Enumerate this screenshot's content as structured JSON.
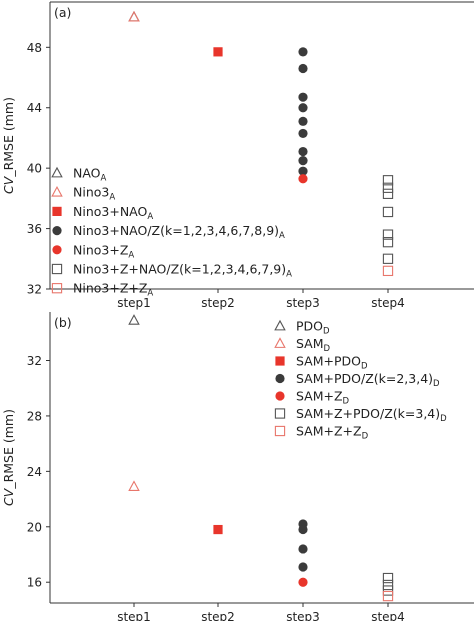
{
  "chart_data": [
    {
      "panel_label": "(a)",
      "type": "scatter",
      "ylabel": "CV_RMSE (mm)",
      "ylim": [
        32,
        51
      ],
      "yticks": [
        32,
        36,
        40,
        44,
        48
      ],
      "categories": [
        "step1",
        "step2",
        "step3",
        "step4"
      ],
      "legend_position": "lower-left",
      "series": [
        {
          "name": "NAO_A",
          "legend_base": "NAO",
          "legend_sub": "A",
          "marker": "triangle",
          "filled": false,
          "color": "#555555",
          "points": [
            {
              "x": "step1",
              "y": 50.0
            }
          ]
        },
        {
          "name": "Nino3_A",
          "legend_base": "Nino3",
          "legend_sub": "A",
          "marker": "triangle",
          "filled": false,
          "color": "#e8766b",
          "points": [
            {
              "x": "step1",
              "y": 50.0
            }
          ]
        },
        {
          "name": "Nino3_A+NAO_A",
          "legend_base": "Nino3+NAO",
          "legend_sub": "A",
          "marker": "square",
          "filled": true,
          "color": "#e8352b",
          "points": [
            {
              "x": "step2",
              "y": 47.7
            }
          ]
        },
        {
          "name": "Nino3_A+NAO_A/Z_kA(k=1,2,3,4,6,7,8,9)",
          "legend_base": "Nino3+NAO/Z(k=1,2,3,4,6,7,8,9)",
          "legend_sub": "A",
          "marker": "circle",
          "filled": true,
          "color": "#3b3b3b",
          "points": [
            {
              "x": "step3",
              "y": 47.7
            },
            {
              "x": "step3",
              "y": 46.6
            },
            {
              "x": "step3",
              "y": 44.7
            },
            {
              "x": "step3",
              "y": 44.0
            },
            {
              "x": "step3",
              "y": 43.1
            },
            {
              "x": "step3",
              "y": 42.3
            },
            {
              "x": "step3",
              "y": 41.1
            },
            {
              "x": "step3",
              "y": 40.5
            },
            {
              "x": "step3",
              "y": 39.8
            }
          ]
        },
        {
          "name": "Nino3_A+Z_5A",
          "legend_base": "Nino3+Z",
          "legend_sub": "A",
          "marker": "circle",
          "filled": true,
          "color": "#e8352b",
          "points": [
            {
              "x": "step3",
              "y": 39.3
            }
          ]
        },
        {
          "name": "Nino3_A+Z_5A+NAO_A/Z_kA(k=1,2,3,4,6,7,9)",
          "legend_base": "Nino3+Z+NAO/Z(k=1,2,3,4,6,7,9)",
          "legend_sub": "A",
          "marker": "square",
          "filled": false,
          "color": "#555555",
          "points": [
            {
              "x": "step4",
              "y": 39.2
            },
            {
              "x": "step4",
              "y": 38.7
            },
            {
              "x": "step4",
              "y": 38.3
            },
            {
              "x": "step4",
              "y": 37.1
            },
            {
              "x": "step4",
              "y": 35.6
            },
            {
              "x": "step4",
              "y": 35.1
            },
            {
              "x": "step4",
              "y": 34.0
            }
          ]
        },
        {
          "name": "Nino3_A+Z_5A+Z_8A",
          "legend_base": "Nino3+Z+Z",
          "legend_sub": "A",
          "marker": "square",
          "filled": false,
          "color": "#e8766b",
          "points": [
            {
              "x": "step4",
              "y": 33.2
            }
          ]
        }
      ]
    },
    {
      "panel_label": "(b)",
      "type": "scatter",
      "ylabel": "CV_RMSE (mm)",
      "ylim": [
        14.5,
        35.5
      ],
      "yticks": [
        16,
        20,
        24,
        28,
        32
      ],
      "categories": [
        "step1",
        "step2",
        "step3",
        "step4"
      ],
      "legend_position": "upper-right",
      "series": [
        {
          "name": "PDO_D",
          "legend_base": "PDO",
          "legend_sub": "D",
          "marker": "triangle",
          "filled": false,
          "color": "#555555",
          "points": [
            {
              "x": "step1",
              "y": 34.9
            }
          ]
        },
        {
          "name": "SAM_D",
          "legend_base": "SAM",
          "legend_sub": "D",
          "marker": "triangle",
          "filled": false,
          "color": "#e8766b",
          "points": [
            {
              "x": "step1",
              "y": 22.9
            }
          ]
        },
        {
          "name": "SAM_D+PDO_D",
          "legend_base": "SAM+PDO",
          "legend_sub": "D",
          "marker": "square",
          "filled": true,
          "color": "#e8352b",
          "points": [
            {
              "x": "step2",
              "y": 19.8
            }
          ]
        },
        {
          "name": "SAM_D+PDO_D/Z_kD(k=2,3,4)",
          "legend_base": "SAM+PDO/Z(k=2,3,4)",
          "legend_sub": "D",
          "marker": "circle",
          "filled": true,
          "color": "#3b3b3b",
          "points": [
            {
              "x": "step3",
              "y": 20.2
            },
            {
              "x": "step3",
              "y": 19.8
            },
            {
              "x": "step3",
              "y": 18.4
            },
            {
              "x": "step3",
              "y": 17.1
            }
          ]
        },
        {
          "name": "SAM_D+Z_1D",
          "legend_base": "SAM+Z",
          "legend_sub": "D",
          "marker": "circle",
          "filled": true,
          "color": "#e8352b",
          "points": [
            {
              "x": "step3",
              "y": 16.0
            }
          ]
        },
        {
          "name": "SAM_D+Z_1D+PDO_D/Z_kD(k=3,4)",
          "legend_base": "SAM+Z+PDO/Z(k=3,4)",
          "legend_sub": "D",
          "marker": "square",
          "filled": false,
          "color": "#555555",
          "points": [
            {
              "x": "step4",
              "y": 16.3
            },
            {
              "x": "step4",
              "y": 15.8
            },
            {
              "x": "step4",
              "y": 15.4
            }
          ]
        },
        {
          "name": "SAM_D+Z_1D+Z_2D",
          "legend_base": "SAM+Z+Z",
          "legend_sub": "D",
          "marker": "square",
          "filled": false,
          "color": "#e8766b",
          "points": [
            {
              "x": "step4",
              "y": 15.0
            }
          ]
        }
      ]
    }
  ],
  "colors": {
    "gray": "#555555",
    "dark": "#3b3b3b",
    "red": "#e8352b",
    "salmon": "#e8766b",
    "axis": "#333333"
  }
}
